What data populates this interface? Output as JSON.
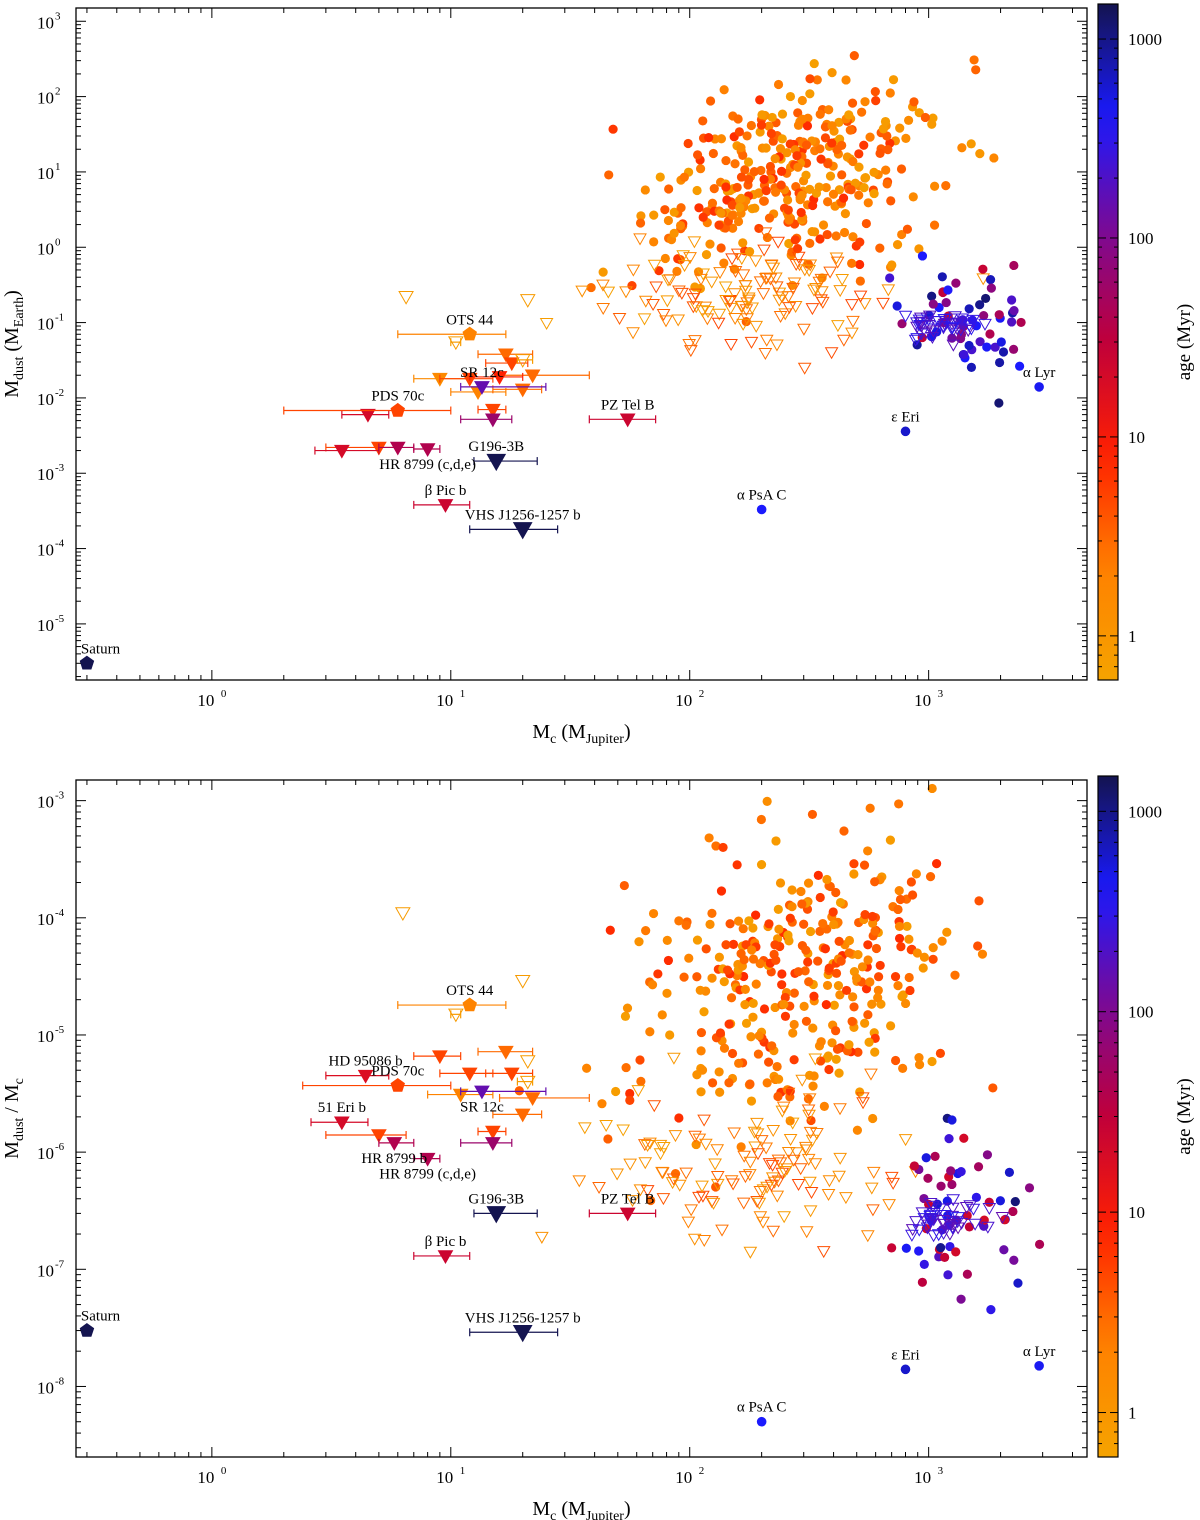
{
  "colorbar": {
    "label": "age (Myr)",
    "ticks": [
      "1",
      "10",
      "100",
      "1000"
    ],
    "tick_values": [
      1,
      10,
      100,
      1000
    ],
    "range": [
      0.6,
      1500
    ],
    "colors": [
      "#f5a300",
      "#ff8000",
      "#ff2000",
      "#c0003a",
      "#7a0a96",
      "#1a1aff",
      "#141450"
    ]
  },
  "chart_data": [
    {
      "type": "scatter",
      "title": "",
      "xlabel": "M",
      "xlabel_sub": "c",
      "xlabel_paren": "M",
      "xlabel_paren_sub": "Jupiter",
      "ylabel": "M",
      "ylabel_sub": "dust",
      "ylabel_paren": "M",
      "ylabel_paren_sub": "Earth",
      "xscale": "log",
      "yscale": "log",
      "xlim": [
        0.27,
        4600
      ],
      "ylim": [
        1.8e-06,
        1500
      ],
      "x_tick_exps": [
        0,
        1,
        2,
        3
      ],
      "y_tick_exps": [
        -5,
        -4,
        -3,
        -2,
        -1,
        0,
        1,
        2,
        3
      ],
      "cloud_seed": 11,
      "cloud_y_factor": 1,
      "labeled_points": [
        {
          "label": "Saturn",
          "x": 0.3,
          "y": 3e-06,
          "shape": "pentagon",
          "age": 4500
        },
        {
          "label": "OTS 44",
          "x": 12,
          "y": 0.07,
          "xerr": [
            6,
            17
          ],
          "shape": "pentagon",
          "age": 2
        },
        {
          "label": "SR 12c",
          "x": 13.5,
          "y": 0.014,
          "xerr": [
            11,
            25
          ],
          "shape": "triangle",
          "age": 150
        },
        {
          "label": "PDS 70c",
          "x": 6,
          "y": 0.0068,
          "xerr": [
            2,
            10
          ],
          "shape": "pentagon",
          "age": 5
        },
        {
          "label": "HR 8799 (c,d,e)",
          "x": 8,
          "y": 0.0021,
          "xerr": [
            7,
            9
          ],
          "shape": "triangle",
          "age": 40
        },
        {
          "label": "G196-3B",
          "x": 15.5,
          "y": 0.00145,
          "xerr": [
            12.5,
            23
          ],
          "shape": "triangle",
          "age": 5000
        },
        {
          "label": "β Pic b",
          "x": 9.5,
          "y": 0.00038,
          "xerr": [
            7,
            12
          ],
          "shape": "triangle",
          "age": 24
        },
        {
          "label": "VHS J1256-1257 b",
          "x": 20,
          "y": 0.00018,
          "xerr": [
            12,
            28
          ],
          "shape": "triangle",
          "age": 5000
        },
        {
          "label": "PZ Tel B",
          "x": 55,
          "y": 0.0052,
          "xerr": [
            38,
            72
          ],
          "shape": "triangle",
          "age": 24
        },
        {
          "label": "α PsA C",
          "x": 200,
          "y": 0.00033,
          "shape": "circle",
          "age": 400
        },
        {
          "label": "ε Eri",
          "x": 800,
          "y": 0.0036,
          "shape": "circle",
          "age": 600
        },
        {
          "label": "α Lyr",
          "x": 2900,
          "y": 0.014,
          "shape": "circle",
          "age": 450
        }
      ],
      "extra_points": [
        {
          "x": 5,
          "y": 0.0022,
          "xerr": [
            3,
            6
          ],
          "age": 5
        },
        {
          "x": 3.5,
          "y": 0.002,
          "xerr": [
            2.7,
            5
          ],
          "age": 20
        },
        {
          "x": 4.5,
          "y": 0.006,
          "xerr": [
            3.5,
            5.5
          ],
          "age": 20
        },
        {
          "x": 6,
          "y": 0.0022,
          "xerr": [
            5,
            7
          ],
          "age": 40
        },
        {
          "x": 9,
          "y": 0.018,
          "xerr": [
            7,
            12
          ],
          "age": 1.5
        },
        {
          "x": 12,
          "y": 0.018,
          "xerr": [
            9,
            15
          ],
          "age": 5
        },
        {
          "x": 13,
          "y": 0.012,
          "xerr": [
            10,
            17
          ],
          "age": 2
        },
        {
          "x": 15,
          "y": 0.007,
          "xerr": [
            13,
            17
          ],
          "age": 5
        },
        {
          "x": 15,
          "y": 0.0052,
          "xerr": [
            11,
            18
          ],
          "age": 60
        },
        {
          "x": 17,
          "y": 0.038,
          "xerr": [
            13,
            22
          ],
          "age": 3
        },
        {
          "x": 18,
          "y": 0.029,
          "xerr": [
            14,
            21
          ],
          "age": 5
        },
        {
          "x": 20,
          "y": 0.013,
          "xerr": [
            15,
            24
          ],
          "age": 3
        },
        {
          "x": 22,
          "y": 0.02,
          "xerr": [
            16,
            38
          ],
          "age": 3
        },
        {
          "x": 16,
          "y": 0.019,
          "xerr": [
            12,
            20
          ],
          "age": 8
        },
        {
          "x": 10.5,
          "y": 0.055,
          "xerr": [
            10,
            11
          ],
          "age": 0.8,
          "open": true
        },
        {
          "x": 20,
          "y": 0.032,
          "xerr": [
            19,
            22
          ],
          "age": 0.8,
          "open": true
        },
        {
          "x": 21,
          "y": 0.2,
          "age": 0.8,
          "open": true
        },
        {
          "x": 6.5,
          "y": 0.22,
          "age": 0.8,
          "open": true
        }
      ]
    },
    {
      "type": "scatter",
      "title": "",
      "xlabel": "M",
      "xlabel_sub": "c",
      "xlabel_paren": "M",
      "xlabel_paren_sub": "Jupiter",
      "ylabel": "M",
      "ylabel_sub": "dust",
      "ylabel_paren": "",
      "ylabel_paren_sub": "",
      "ylabel_suffix": " / M",
      "ylabel_suffix_sub": "c",
      "xscale": "log",
      "yscale": "log",
      "xlim": [
        0.27,
        4600
      ],
      "ylim": [
        2.5e-09,
        0.0015
      ],
      "x_tick_exps": [
        0,
        1,
        2,
        3
      ],
      "y_tick_exps": [
        -8,
        -7,
        -6,
        -5,
        -4,
        -3
      ],
      "cloud_seed": 23,
      "cloud_y_factor": 3e-06,
      "labeled_points": [
        {
          "label": "Saturn",
          "x": 0.3,
          "y": 3e-08,
          "shape": "pentagon",
          "age": 4500
        },
        {
          "label": "OTS 44",
          "x": 12,
          "y": 1.8e-05,
          "xerr": [
            6,
            17
          ],
          "shape": "pentagon",
          "age": 2
        },
        {
          "label": "HD 95086 b",
          "x": 4.4,
          "y": 4.5e-06,
          "xerr": [
            3,
            5.5
          ],
          "shape": "triangle",
          "age": 17
        },
        {
          "label": "PDS 70c",
          "x": 6,
          "y": 3.7e-06,
          "xerr": [
            2.4,
            10
          ],
          "shape": "pentagon",
          "age": 5
        },
        {
          "label": "SR 12c",
          "x": 13.5,
          "y": 3.3e-06,
          "xerr": [
            11,
            25
          ],
          "shape": "triangle",
          "age": 150
        },
        {
          "label": "51 Eri b",
          "x": 3.5,
          "y": 1.8e-06,
          "xerr": [
            2.6,
            4.5
          ],
          "shape": "triangle",
          "age": 20
        },
        {
          "label": "HR 8799 b",
          "x": 5.8,
          "y": 1.2e-06,
          "xerr": [
            5,
            7
          ],
          "shape": "triangle",
          "age": 40
        },
        {
          "label": "HR 8799 (c,d,e)",
          "x": 8,
          "y": 8.8e-07,
          "xerr": [
            7,
            9
          ],
          "shape": "triangle",
          "age": 40
        },
        {
          "label": "G196-3B",
          "x": 15.5,
          "y": 3e-07,
          "xerr": [
            12.5,
            23
          ],
          "shape": "triangle",
          "age": 5000
        },
        {
          "label": "PZ Tel B",
          "x": 55,
          "y": 3e-07,
          "xerr": [
            38,
            72
          ],
          "shape": "triangle",
          "age": 24
        },
        {
          "label": "β Pic b",
          "x": 9.5,
          "y": 1.3e-07,
          "xerr": [
            7,
            12
          ],
          "shape": "triangle",
          "age": 24
        },
        {
          "label": "VHS J1256-1257 b",
          "x": 20,
          "y": 2.9e-08,
          "xerr": [
            12,
            28
          ],
          "shape": "triangle",
          "age": 5000
        },
        {
          "label": "ε Eri",
          "x": 800,
          "y": 1.4e-08,
          "shape": "circle",
          "age": 600
        },
        {
          "label": "α Lyr",
          "x": 2900,
          "y": 1.5e-08,
          "shape": "circle",
          "age": 450
        },
        {
          "label": "α PsA C",
          "x": 200,
          "y": 5e-09,
          "shape": "circle",
          "age": 400
        }
      ],
      "extra_points": [
        {
          "x": 5,
          "y": 1.4e-06,
          "xerr": [
            3,
            6.5
          ],
          "age": 5
        },
        {
          "x": 9,
          "y": 6.6e-06,
          "xerr": [
            7,
            11
          ],
          "age": 5
        },
        {
          "x": 11,
          "y": 3.1e-06,
          "xerr": [
            8,
            15
          ],
          "age": 2
        },
        {
          "x": 12,
          "y": 4.7e-06,
          "xerr": [
            9,
            15
          ],
          "age": 5
        },
        {
          "x": 15,
          "y": 1.5e-06,
          "xerr": [
            13,
            17
          ],
          "age": 5
        },
        {
          "x": 15,
          "y": 1.2e-06,
          "xerr": [
            11,
            18
          ],
          "age": 60
        },
        {
          "x": 17,
          "y": 7.2e-06,
          "xerr": [
            13,
            22
          ],
          "age": 3
        },
        {
          "x": 18,
          "y": 4.7e-06,
          "xerr": [
            14,
            22
          ],
          "age": 5
        },
        {
          "x": 20,
          "y": 2.1e-06,
          "xerr": [
            15,
            24
          ],
          "age": 3
        },
        {
          "x": 22,
          "y": 2.9e-06,
          "xerr": [
            16,
            38
          ],
          "age": 3
        },
        {
          "x": 10.5,
          "y": 1.5e-05,
          "xerr": [
            10,
            11
          ],
          "age": 0.8,
          "open": true
        },
        {
          "x": 21,
          "y": 4e-06,
          "xerr": [
            19,
            22
          ],
          "age": 0.8,
          "open": true
        },
        {
          "x": 21,
          "y": 6e-06,
          "age": 0.8,
          "open": true
        },
        {
          "x": 20,
          "y": 2.9e-05,
          "age": 0.8,
          "open": true
        },
        {
          "x": 6.3,
          "y": 0.00011,
          "age": 0.8,
          "open": true
        }
      ]
    }
  ]
}
